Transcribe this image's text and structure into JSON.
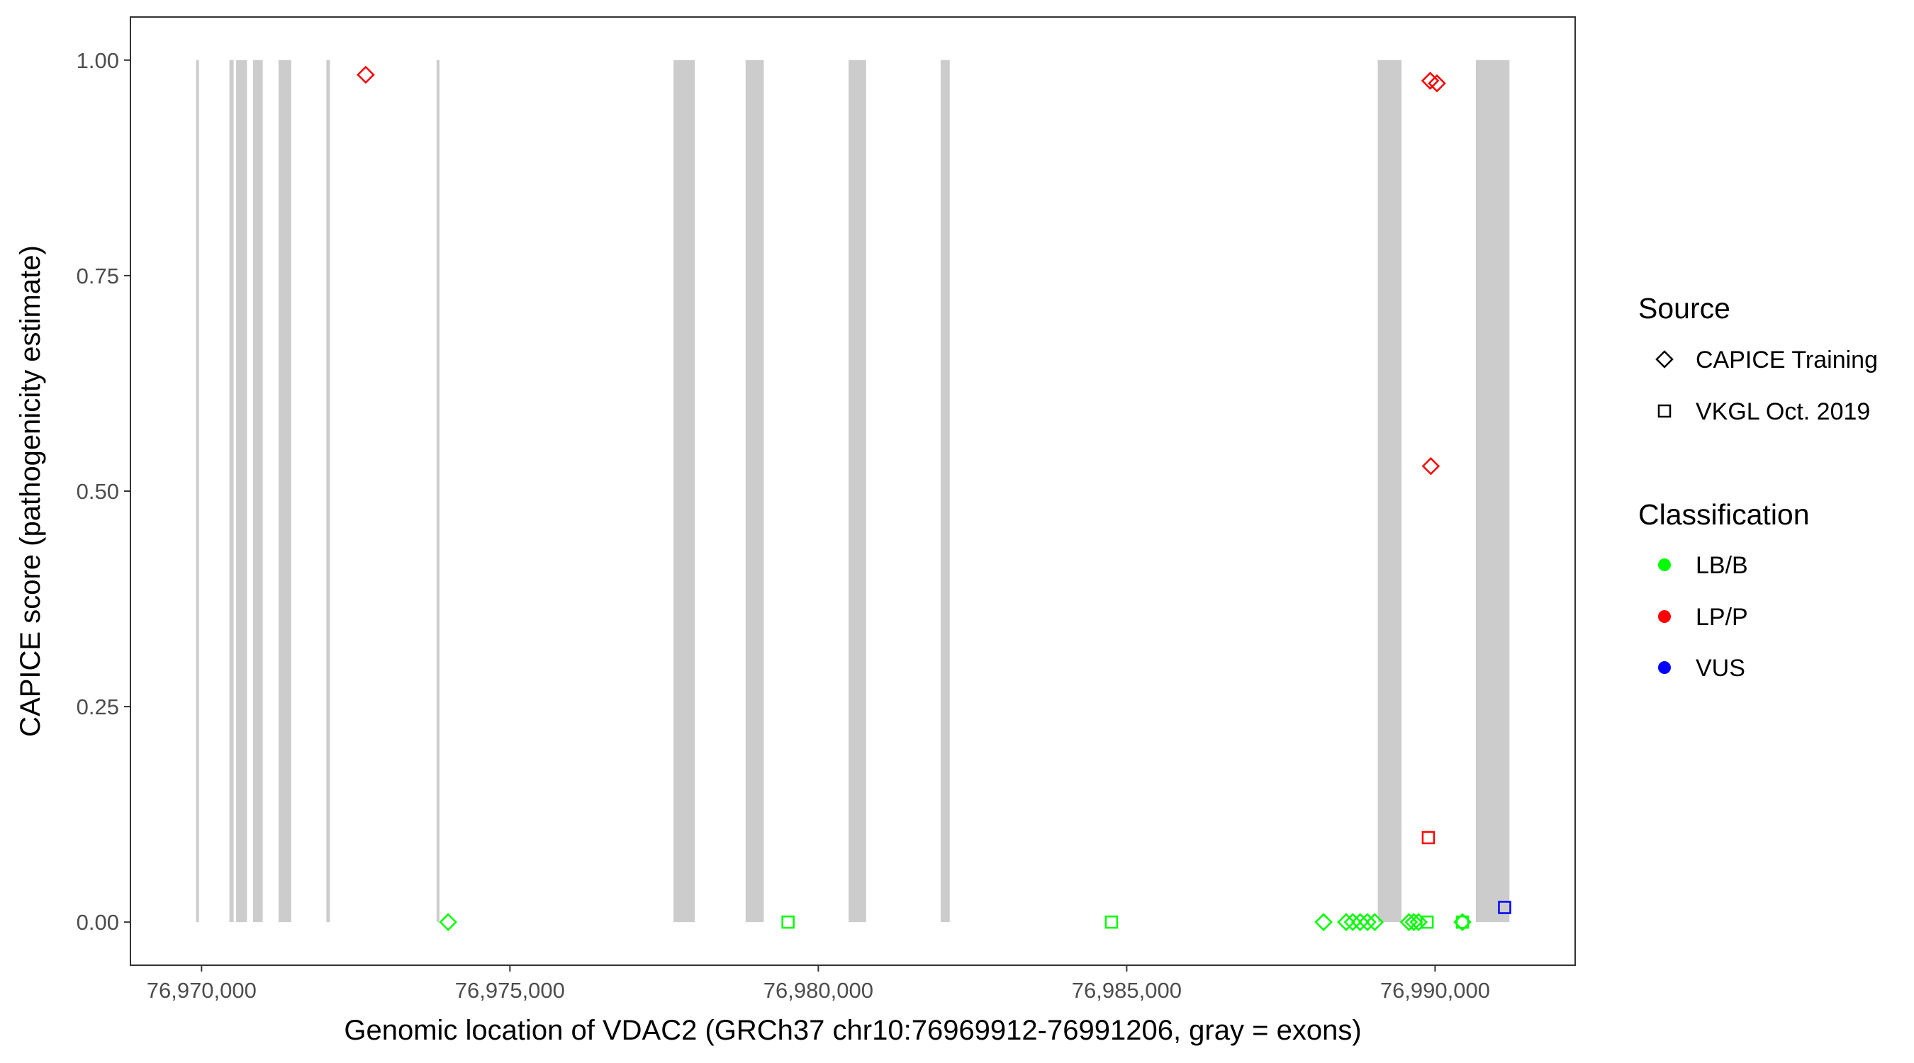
{
  "chart_data": {
    "type": "scatter",
    "xlabel": "Genomic location of VDAC2 (GRCh37 chr10:76969912-76991206, gray = exons)",
    "ylabel": "CAPICE score (pathogenicity estimate)",
    "xlim": [
      76968847,
      76992271
    ],
    "ylim": [
      -0.05,
      1.05
    ],
    "x_ticks": [
      76970000,
      76975000,
      76980000,
      76985000,
      76990000
    ],
    "x_tick_labels": [
      "76,970,000",
      "76,975,000",
      "76,980,000",
      "76,985,000",
      "76,990,000"
    ],
    "y_ticks": [
      0,
      0.25,
      0.5,
      0.75,
      1
    ],
    "y_tick_labels": [
      "0.00",
      "0.25",
      "0.50",
      "0.75",
      "1.00"
    ],
    "grid": false,
    "exon_color": "#CCCCCC",
    "exons": [
      [
        76969912,
        76969930
      ],
      [
        76970452,
        76970520
      ],
      [
        76970560,
        76970737
      ],
      [
        76970835,
        76970992
      ],
      [
        76971248,
        76971454
      ],
      [
        76972024,
        76972082
      ],
      [
        76973811,
        76973850
      ],
      [
        76977652,
        76977996
      ],
      [
        76978821,
        76979116
      ],
      [
        76980491,
        76980776
      ],
      [
        76981984,
        76982131
      ],
      [
        76989071,
        76989456
      ],
      [
        76990662,
        76991206
      ]
    ],
    "legend_placement": "right",
    "legend": {
      "source": {
        "title": "Source",
        "items": [
          {
            "label": "CAPICE Training",
            "shape": "diamond"
          },
          {
            "label": "VKGL Oct. 2019",
            "shape": "square"
          }
        ]
      },
      "classification": {
        "title": "Classification",
        "items": [
          {
            "label": "LB/B",
            "color": "#00FF00"
          },
          {
            "label": "LP/P",
            "color": "#FF0000"
          },
          {
            "label": "VUS",
            "color": "#0000FF"
          }
        ]
      }
    },
    "points": [
      {
        "x": 76972662,
        "y": 0.983,
        "source": "CAPICE Training",
        "class": "LP/P"
      },
      {
        "x": 76973998,
        "y": 0.0,
        "source": "CAPICE Training",
        "class": "LB/B"
      },
      {
        "x": 76979509,
        "y": 0.0,
        "source": "VKGL Oct. 2019",
        "class": "LB/B"
      },
      {
        "x": 76984753,
        "y": 0.0,
        "source": "VKGL Oct. 2019",
        "class": "LB/B"
      },
      {
        "x": 76988192,
        "y": 0.0,
        "source": "CAPICE Training",
        "class": "LB/B"
      },
      {
        "x": 76988558,
        "y": 0.0,
        "source": "CAPICE Training",
        "class": "LB/B"
      },
      {
        "x": 76988666,
        "y": 0.0,
        "source": "CAPICE Training",
        "class": "LB/B"
      },
      {
        "x": 76988785,
        "y": 0.0,
        "source": "CAPICE Training",
        "class": "LB/B"
      },
      {
        "x": 76988903,
        "y": 0.0,
        "source": "CAPICE Training",
        "class": "LB/B"
      },
      {
        "x": 76989022,
        "y": 0.0,
        "source": "CAPICE Training",
        "class": "LB/B"
      },
      {
        "x": 76989575,
        "y": 0.0,
        "source": "CAPICE Training",
        "class": "LB/B"
      },
      {
        "x": 76989654,
        "y": 0.0,
        "source": "CAPICE Training",
        "class": "LB/B"
      },
      {
        "x": 76989733,
        "y": 0.0,
        "source": "CAPICE Training",
        "class": "LB/B"
      },
      {
        "x": 76989871,
        "y": 0.0,
        "source": "VKGL Oct. 2019",
        "class": "LB/B"
      },
      {
        "x": 76990444,
        "y": 0.0,
        "source": "CAPICE Training",
        "class": "LB/B"
      },
      {
        "x": 76990444,
        "y": 0.0,
        "source": "VKGL Oct. 2019",
        "class": "LB/B"
      },
      {
        "x": 76989921,
        "y": 0.976,
        "source": "CAPICE Training",
        "class": "LP/P"
      },
      {
        "x": 76990030,
        "y": 0.973,
        "source": "CAPICE Training",
        "class": "LP/P"
      },
      {
        "x": 76989931,
        "y": 0.529,
        "source": "CAPICE Training",
        "class": "LP/P"
      },
      {
        "x": 76989891,
        "y": 0.098,
        "source": "VKGL Oct. 2019",
        "class": "LP/P"
      },
      {
        "x": 76991127,
        "y": 0.017,
        "source": "VKGL Oct. 2019",
        "class": "VUS"
      }
    ]
  }
}
